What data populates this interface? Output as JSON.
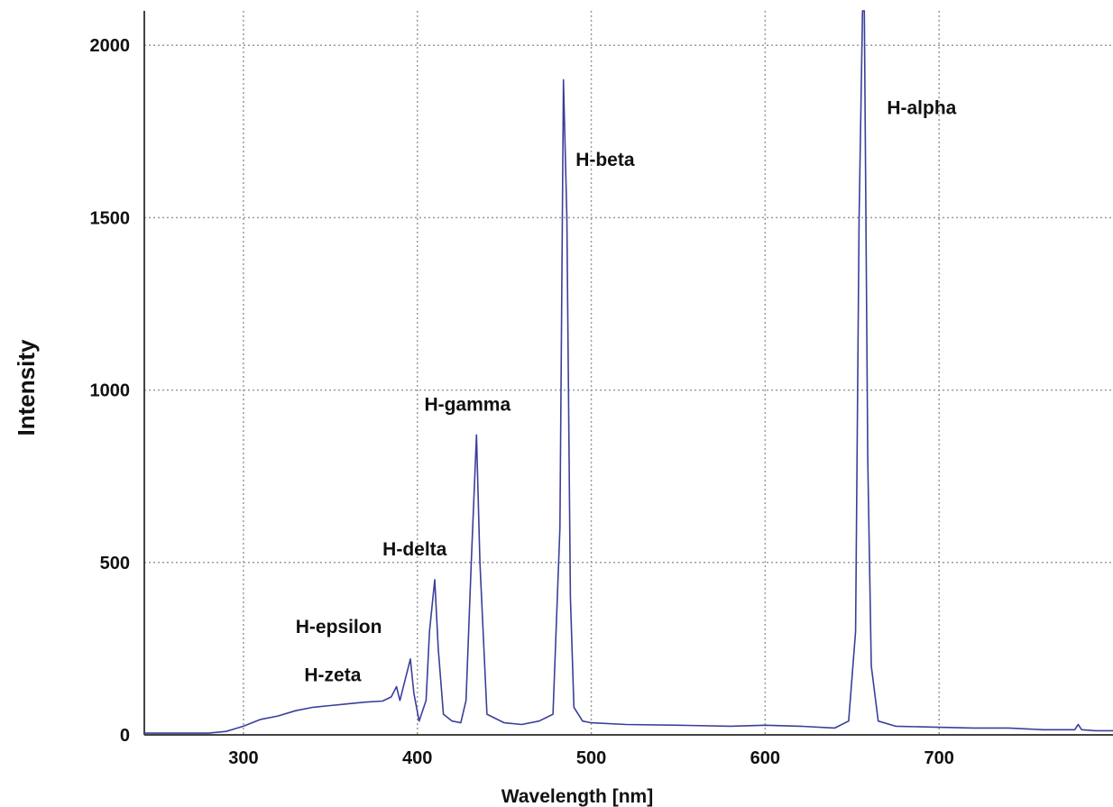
{
  "chart_data": {
    "type": "line",
    "xlabel": "Wavelength [nm]",
    "ylabel": "Intensity",
    "xlim": [
      243,
      800
    ],
    "ylim": [
      0,
      2100
    ],
    "x_ticks": [
      300,
      400,
      500,
      600,
      700
    ],
    "y_ticks": [
      0,
      500,
      1000,
      1500,
      2000
    ],
    "grid": true,
    "grid_style": "dotted",
    "line_color": "#3a3f99",
    "grid_color": "#9a9a9a",
    "series": [
      {
        "x": [
          243,
          260,
          280,
          290,
          300,
          310,
          320,
          330,
          340,
          350,
          360,
          370,
          380,
          385,
          388,
          390,
          393,
          396,
          398,
          401,
          405,
          407,
          410,
          412,
          415,
          420,
          425,
          428,
          431,
          434,
          436,
          440,
          450,
          460,
          470,
          478,
          482,
          484,
          486,
          488,
          490,
          495,
          500,
          520,
          550,
          580,
          600,
          620,
          640,
          648,
          652,
          654,
          656,
          657,
          659,
          661,
          665,
          675,
          700,
          720,
          740,
          760,
          778,
          780,
          782,
          790,
          800
        ],
        "y": [
          5,
          5,
          5,
          10,
          25,
          45,
          55,
          70,
          80,
          85,
          90,
          95,
          98,
          110,
          140,
          100,
          160,
          220,
          120,
          40,
          100,
          300,
          450,
          250,
          60,
          40,
          35,
          100,
          500,
          870,
          500,
          60,
          35,
          30,
          40,
          60,
          600,
          1900,
          1500,
          400,
          80,
          40,
          35,
          30,
          28,
          25,
          28,
          25,
          20,
          40,
          300,
          1500,
          2200,
          2100,
          800,
          200,
          40,
          25,
          22,
          20,
          20,
          15,
          15,
          30,
          15,
          12,
          12
        ]
      }
    ],
    "annotations": [
      {
        "text": "H-alpha",
        "x": 670,
        "y": 1800
      },
      {
        "text": "H-beta",
        "x": 491,
        "y": 1650
      },
      {
        "text": "H-gamma",
        "x": 404,
        "y": 940
      },
      {
        "text": "H-delta",
        "x": 380,
        "y": 520
      },
      {
        "text": "H-epsilon",
        "x": 330,
        "y": 295
      },
      {
        "text": "H-zeta",
        "x": 335,
        "y": 155
      }
    ]
  }
}
